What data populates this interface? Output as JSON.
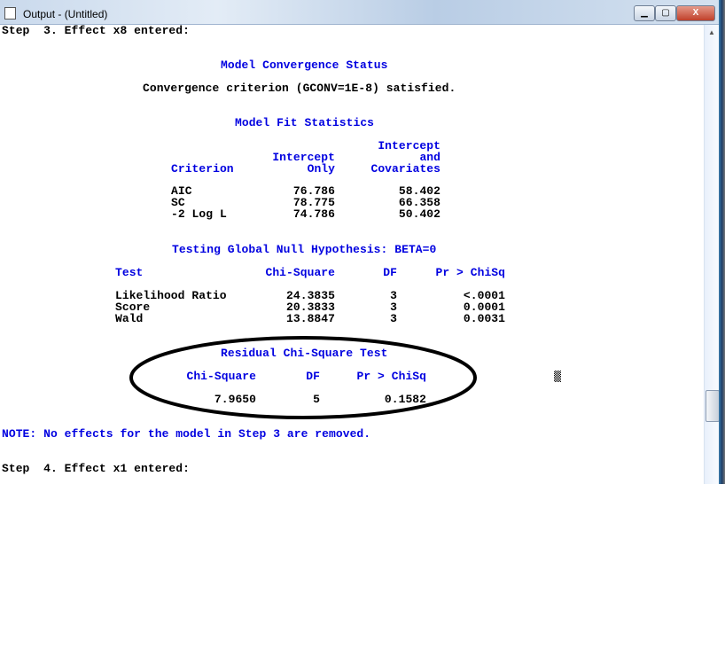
{
  "window": {
    "title": "Output - (Untitled)",
    "buttons": [
      "minimize",
      "maximize",
      "close"
    ]
  },
  "output": {
    "step3": "Step  3. Effect x8 entered:",
    "convergence": {
      "title": "Model Convergence Status",
      "text": "Convergence criterion (GCONV=1E-8) satisfied."
    },
    "fit": {
      "title": "Model Fit Statistics",
      "headers": {
        "criterion": "Criterion",
        "io1": "Intercept",
        "io2": "Only",
        "ic1": "Intercept",
        "ic2": "and",
        "ic3": "Covariates"
      },
      "rows": [
        [
          "AIC",
          "76.786",
          "58.402"
        ],
        [
          "SC",
          "78.775",
          "66.358"
        ],
        [
          "-2 Log L",
          "74.786",
          "50.402"
        ]
      ]
    },
    "global": {
      "title": "Testing Global Null Hypothesis: BETA=0",
      "headers": [
        "Test",
        "Chi-Square",
        "DF",
        "Pr > ChiSq"
      ],
      "rows": [
        [
          "Likelihood Ratio",
          "24.3835",
          "3",
          "<.0001"
        ],
        [
          "Score",
          "20.3833",
          "3",
          "0.0001"
        ],
        [
          "Wald",
          "13.8847",
          "3",
          "0.0031"
        ]
      ]
    },
    "residual": {
      "title": "Residual Chi-Square Test",
      "headers": [
        "Chi-Square",
        "DF",
        "Pr > ChiSq"
      ],
      "row": [
        "7.9650",
        "5",
        "0.1582"
      ]
    },
    "note": "NOTE: No effects for the model in Step 3 are removed.",
    "step4": "Step  4. Effect x1 entered:"
  },
  "colors": {
    "heading": "#0000e0",
    "text": "#000000"
  }
}
